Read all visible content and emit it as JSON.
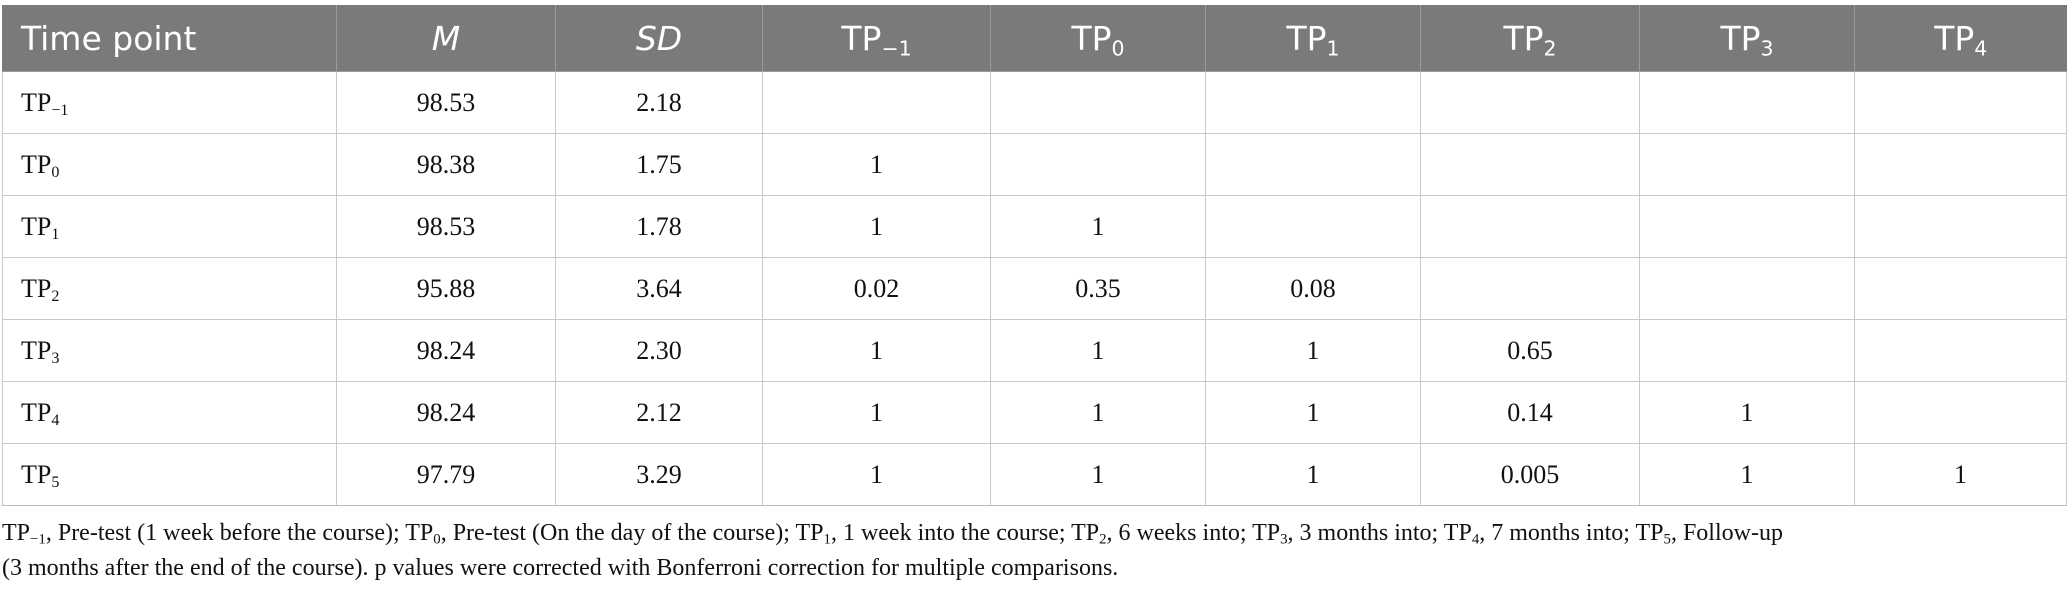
{
  "table": {
    "headers": [
      {
        "base": "Time point",
        "sub": "",
        "italic": false
      },
      {
        "base": "M",
        "sub": "",
        "italic": true
      },
      {
        "base": "SD",
        "sub": "",
        "italic": true
      },
      {
        "base": "TP",
        "sub": "−1",
        "italic": false
      },
      {
        "base": "TP",
        "sub": "0",
        "italic": false
      },
      {
        "base": "TP",
        "sub": "1",
        "italic": false
      },
      {
        "base": "TP",
        "sub": "2",
        "italic": false
      },
      {
        "base": "TP",
        "sub": "3",
        "italic": false
      },
      {
        "base": "TP",
        "sub": "4",
        "italic": false
      }
    ],
    "rows": [
      {
        "label_base": "TP",
        "label_sub": "−1",
        "cells": [
          "98.53",
          "2.18",
          "",
          "",
          "",
          "",
          "",
          ""
        ]
      },
      {
        "label_base": "TP",
        "label_sub": "0",
        "cells": [
          "98.38",
          "1.75",
          "1",
          "",
          "",
          "",
          "",
          ""
        ]
      },
      {
        "label_base": "TP",
        "label_sub": "1",
        "cells": [
          "98.53",
          "1.78",
          "1",
          "1",
          "",
          "",
          "",
          ""
        ]
      },
      {
        "label_base": "TP",
        "label_sub": "2",
        "cells": [
          "95.88",
          "3.64",
          "0.02",
          "0.35",
          "0.08",
          "",
          "",
          ""
        ]
      },
      {
        "label_base": "TP",
        "label_sub": "3",
        "cells": [
          "98.24",
          "2.30",
          "1",
          "1",
          "1",
          "0.65",
          "",
          ""
        ]
      },
      {
        "label_base": "TP",
        "label_sub": "4",
        "cells": [
          "98.24",
          "2.12",
          "1",
          "1",
          "1",
          "0.14",
          "1",
          ""
        ]
      },
      {
        "label_base": "TP",
        "label_sub": "5",
        "cells": [
          "97.79",
          "3.29",
          "1",
          "1",
          "1",
          "0.005",
          "1",
          "1"
        ]
      }
    ]
  },
  "footnote": {
    "line1": [
      {
        "t": "TP"
      },
      {
        "s": "−1"
      },
      {
        "t": ", Pre-test (1 week before the course); TP"
      },
      {
        "s": "0"
      },
      {
        "t": ", Pre-test (On the day of the course); TP"
      },
      {
        "s": "1"
      },
      {
        "t": ", 1 week into the course; TP"
      },
      {
        "s": "2"
      },
      {
        "t": ", 6 weeks into; TP"
      },
      {
        "s": "3"
      },
      {
        "t": ", 3 months into; TP"
      },
      {
        "s": "4"
      },
      {
        "t": ", 7 months into; TP"
      },
      {
        "s": "5"
      },
      {
        "t": ", Follow-up"
      }
    ],
    "line2": [
      {
        "t": "(3 months after the end of the course). p values were corrected with Bonferroni correction for multiple comparisons."
      }
    ]
  }
}
